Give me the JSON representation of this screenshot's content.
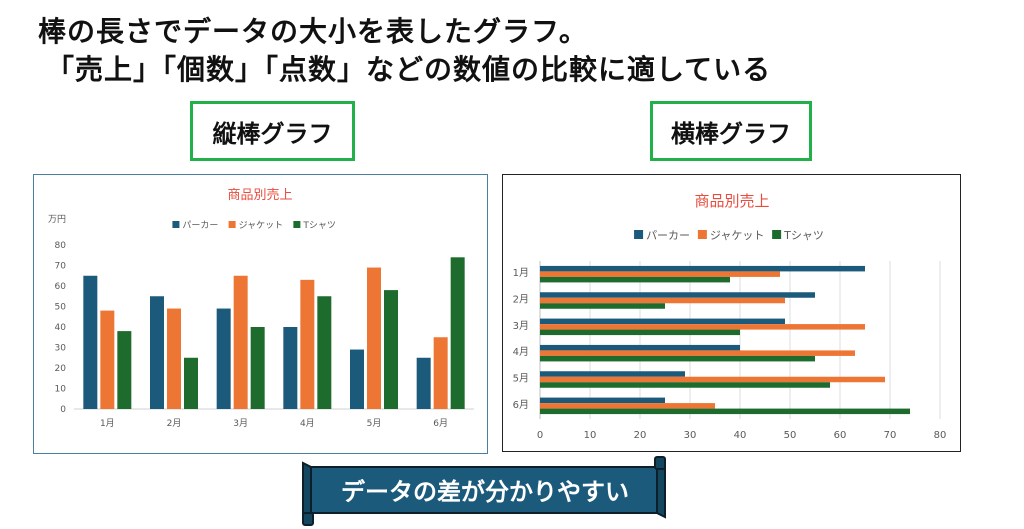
{
  "heading": {
    "line1": "棒の長さでデータの大小を表したグラフ。",
    "line2": "「売上」「個数」「点数」などの数値の比較に適している"
  },
  "labels": {
    "vertical": "縦棒グラフ",
    "horizontal": "横棒グラフ"
  },
  "banner": {
    "text": "データの差が分かりやすい"
  },
  "colors": {
    "title": "#e84c3d",
    "accent_box": "#22b04b",
    "banner": "#1c5a7c"
  },
  "chart_data": [
    {
      "type": "bar",
      "orientation": "vertical",
      "title": "商品別売上",
      "ylabel": "万円",
      "xlabel": "",
      "categories": [
        "1月",
        "2月",
        "3月",
        "4月",
        "5月",
        "6月"
      ],
      "series": [
        {
          "name": "パーカー",
          "color": "#1c5a7c",
          "values": [
            65,
            55,
            49,
            40,
            29,
            25
          ]
        },
        {
          "name": "ジャケット",
          "color": "#ed7634",
          "values": [
            48,
            49,
            65,
            63,
            69,
            35
          ]
        },
        {
          "name": "Tシャツ",
          "color": "#1e6b2e",
          "values": [
            38,
            25,
            40,
            55,
            58,
            74
          ]
        }
      ],
      "ylim": [
        0,
        80
      ],
      "yticks": [
        0,
        10,
        20,
        30,
        40,
        50,
        60,
        70,
        80
      ],
      "legend": "top",
      "grid": false
    },
    {
      "type": "bar",
      "orientation": "horizontal",
      "title": "商品別売上",
      "xlabel": "",
      "ylabel": "",
      "categories": [
        "1月",
        "2月",
        "3月",
        "4月",
        "5月",
        "6月"
      ],
      "series": [
        {
          "name": "パーカー",
          "color": "#1c5a7c",
          "values": [
            65,
            55,
            49,
            40,
            29,
            25
          ]
        },
        {
          "name": "ジャケット",
          "color": "#ed7634",
          "values": [
            48,
            49,
            65,
            63,
            69,
            35
          ]
        },
        {
          "name": "Tシャツ",
          "color": "#1e6b2e",
          "values": [
            38,
            25,
            40,
            55,
            58,
            74
          ]
        }
      ],
      "xlim": [
        0,
        80
      ],
      "xticks": [
        0,
        10,
        20,
        30,
        40,
        50,
        60,
        70,
        80
      ],
      "legend": "top",
      "grid": true
    }
  ]
}
